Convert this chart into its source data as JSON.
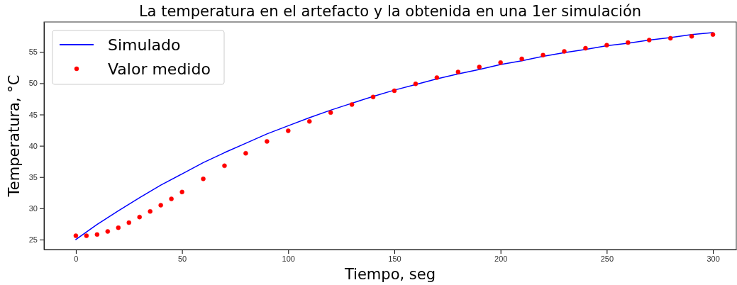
{
  "chart_data": {
    "type": "line",
    "title": "La temperatura en el artefacto y la obtenida en una 1er simulación",
    "xlabel": "Tiempo, seg",
    "ylabel": "Temperatura, °C",
    "xlim": [
      -15,
      311
    ],
    "xticks": [
      0,
      50,
      100,
      150,
      200,
      250,
      300
    ],
    "ylim": [
      23.4,
      59.8
    ],
    "yticks": [
      25,
      30,
      35,
      40,
      45,
      50,
      55
    ],
    "grid": false,
    "legend": "top left",
    "series": [
      {
        "name": "Simulado",
        "color": "#0000ff",
        "line_style": "solid",
        "marker": "none",
        "x": [
          0,
          10,
          20,
          30,
          40,
          50,
          60,
          70,
          80,
          90,
          100,
          110,
          120,
          130,
          140,
          150,
          160,
          170,
          180,
          190,
          200,
          210,
          220,
          230,
          240,
          250,
          260,
          270,
          280,
          290,
          300
        ],
        "values": [
          25,
          27.4,
          29.6,
          31.7,
          33.7,
          35.5,
          37.3,
          38.9,
          40.4,
          41.9,
          43.2,
          44.5,
          45.7,
          46.8,
          47.9,
          48.9,
          49.8,
          50.7,
          51.5,
          52.2,
          53,
          53.6,
          54.3,
          54.9,
          55.4,
          56,
          56.4,
          56.9,
          57.3,
          57.8,
          58.1
        ]
      },
      {
        "name": "Valor medido",
        "type": "scatter",
        "color": "#ff0000",
        "marker": "circle",
        "x": [
          0,
          5,
          10,
          15,
          20,
          25,
          30,
          35,
          40,
          45,
          50,
          60,
          70,
          80,
          90,
          100,
          110,
          120,
          130,
          140,
          150,
          160,
          170,
          180,
          190,
          200,
          210,
          220,
          230,
          240,
          250,
          260,
          270,
          280,
          290,
          300
        ],
        "values": [
          25.6,
          25.6,
          25.8,
          26.3,
          26.9,
          27.7,
          28.6,
          29.5,
          30.5,
          31.5,
          32.6,
          34.7,
          36.8,
          38.8,
          40.7,
          42.4,
          43.9,
          45.3,
          46.6,
          47.8,
          48.8,
          49.9,
          50.9,
          51.8,
          52.6,
          53.3,
          53.9,
          54.5,
          55.1,
          55.6,
          56.1,
          56.5,
          56.9,
          57.2,
          57.5,
          57.8
        ]
      }
    ]
  }
}
